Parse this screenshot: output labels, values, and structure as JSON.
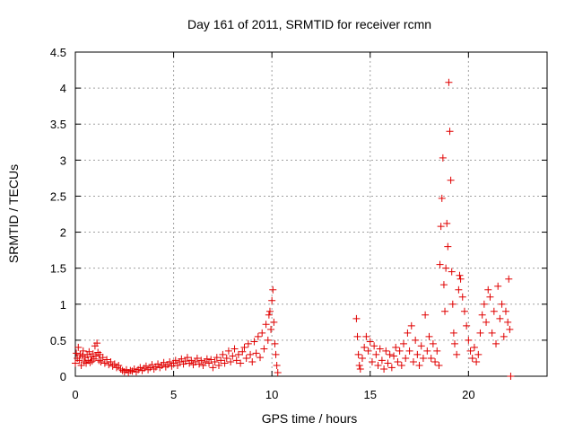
{
  "chart_data": {
    "type": "scatter",
    "title": "Day 161 of 2011, SRMTID for receiver rcmn",
    "xlabel": "GPS time / hours",
    "ylabel": "SRMTID / TECUs",
    "xlim": [
      0,
      24
    ],
    "ylim": [
      0,
      4.5
    ],
    "x_ticks": [
      0,
      5,
      10,
      15,
      20
    ],
    "x_tick_labels": [
      "0",
      "5",
      "10",
      "15",
      "20"
    ],
    "y_ticks": [
      0,
      0.5,
      1,
      1.5,
      2,
      2.5,
      3,
      3.5,
      4,
      4.5
    ],
    "y_tick_labels": [
      "0",
      "0.5",
      "1",
      "1.5",
      "2",
      "2.5",
      "3",
      "3.5",
      "4",
      "4.5"
    ],
    "grid": true,
    "marker": "+",
    "marker_color": "#e00000",
    "series": [
      {
        "name": "rcmn",
        "points": [
          [
            0.0,
            0.18
          ],
          [
            0.05,
            0.32
          ],
          [
            0.1,
            0.25
          ],
          [
            0.15,
            0.4
          ],
          [
            0.2,
            0.22
          ],
          [
            0.25,
            0.3
          ],
          [
            0.3,
            0.15
          ],
          [
            0.35,
            0.28
          ],
          [
            0.4,
            0.35
          ],
          [
            0.45,
            0.2
          ],
          [
            0.5,
            0.26
          ],
          [
            0.55,
            0.18
          ],
          [
            0.6,
            0.3
          ],
          [
            0.65,
            0.22
          ],
          [
            0.7,
            0.34
          ],
          [
            0.75,
            0.19
          ],
          [
            0.8,
            0.27
          ],
          [
            0.85,
            0.21
          ],
          [
            0.9,
            0.31
          ],
          [
            0.95,
            0.24
          ],
          [
            1.0,
            0.42
          ],
          [
            1.05,
            0.28
          ],
          [
            1.1,
            0.46
          ],
          [
            1.15,
            0.33
          ],
          [
            1.2,
            0.22
          ],
          [
            1.25,
            0.3
          ],
          [
            1.3,
            0.2
          ],
          [
            1.4,
            0.26
          ],
          [
            1.5,
            0.18
          ],
          [
            1.6,
            0.23
          ],
          [
            1.7,
            0.16
          ],
          [
            1.8,
            0.2
          ],
          [
            1.9,
            0.14
          ],
          [
            2.0,
            0.17
          ],
          [
            2.1,
            0.12
          ],
          [
            2.2,
            0.15
          ],
          [
            2.3,
            0.1
          ],
          [
            2.4,
            0.08
          ],
          [
            2.5,
            0.06
          ],
          [
            2.6,
            0.09
          ],
          [
            2.7,
            0.05
          ],
          [
            2.8,
            0.08
          ],
          [
            2.9,
            0.07
          ],
          [
            3.0,
            0.1
          ],
          [
            3.1,
            0.06
          ],
          [
            3.2,
            0.09
          ],
          [
            3.3,
            0.12
          ],
          [
            3.4,
            0.08
          ],
          [
            3.5,
            0.11
          ],
          [
            3.6,
            0.14
          ],
          [
            3.7,
            0.09
          ],
          [
            3.8,
            0.12
          ],
          [
            3.9,
            0.16
          ],
          [
            4.0,
            0.1
          ],
          [
            4.1,
            0.13
          ],
          [
            4.2,
            0.17
          ],
          [
            4.3,
            0.12
          ],
          [
            4.4,
            0.15
          ],
          [
            4.5,
            0.19
          ],
          [
            4.6,
            0.13
          ],
          [
            4.7,
            0.16
          ],
          [
            4.8,
            0.2
          ],
          [
            4.9,
            0.14
          ],
          [
            5.0,
            0.18
          ],
          [
            5.1,
            0.22
          ],
          [
            5.2,
            0.15
          ],
          [
            5.3,
            0.2
          ],
          [
            5.4,
            0.24
          ],
          [
            5.5,
            0.17
          ],
          [
            5.6,
            0.21
          ],
          [
            5.7,
            0.26
          ],
          [
            5.8,
            0.18
          ],
          [
            5.9,
            0.22
          ],
          [
            6.0,
            0.16
          ],
          [
            6.1,
            0.2
          ],
          [
            6.2,
            0.25
          ],
          [
            6.3,
            0.17
          ],
          [
            6.4,
            0.22
          ],
          [
            6.5,
            0.15
          ],
          [
            6.6,
            0.2
          ],
          [
            6.7,
            0.24
          ],
          [
            6.8,
            0.18
          ],
          [
            6.9,
            0.23
          ],
          [
            7.0,
            0.12
          ],
          [
            7.1,
            0.2
          ],
          [
            7.2,
            0.26
          ],
          [
            7.3,
            0.15
          ],
          [
            7.4,
            0.22
          ],
          [
            7.5,
            0.3
          ],
          [
            7.6,
            0.18
          ],
          [
            7.7,
            0.25
          ],
          [
            7.8,
            0.35
          ],
          [
            7.9,
            0.2
          ],
          [
            8.0,
            0.28
          ],
          [
            8.1,
            0.38
          ],
          [
            8.2,
            0.22
          ],
          [
            8.3,
            0.3
          ],
          [
            8.4,
            0.18
          ],
          [
            8.5,
            0.34
          ],
          [
            8.6,
            0.4
          ],
          [
            8.7,
            0.25
          ],
          [
            8.8,
            0.45
          ],
          [
            8.9,
            0.3
          ],
          [
            9.0,
            0.2
          ],
          [
            9.1,
            0.48
          ],
          [
            9.2,
            0.32
          ],
          [
            9.3,
            0.55
          ],
          [
            9.4,
            0.26
          ],
          [
            9.5,
            0.6
          ],
          [
            9.6,
            0.38
          ],
          [
            9.7,
            0.72
          ],
          [
            9.8,
            0.5
          ],
          [
            9.85,
            0.85
          ],
          [
            9.9,
            0.9
          ],
          [
            9.95,
            0.65
          ],
          [
            10.0,
            1.05
          ],
          [
            10.05,
            1.2
          ],
          [
            10.1,
            0.75
          ],
          [
            10.15,
            0.45
          ],
          [
            10.2,
            0.3
          ],
          [
            10.25,
            0.15
          ],
          [
            10.3,
            0.05
          ],
          [
            14.3,
            0.8
          ],
          [
            14.35,
            0.55
          ],
          [
            14.4,
            0.3
          ],
          [
            14.45,
            0.15
          ],
          [
            14.5,
            0.1
          ],
          [
            14.6,
            0.25
          ],
          [
            14.7,
            0.4
          ],
          [
            14.8,
            0.55
          ],
          [
            14.9,
            0.35
          ],
          [
            15.0,
            0.48
          ],
          [
            15.1,
            0.2
          ],
          [
            15.2,
            0.42
          ],
          [
            15.3,
            0.3
          ],
          [
            15.4,
            0.15
          ],
          [
            15.5,
            0.38
          ],
          [
            15.6,
            0.22
          ],
          [
            15.7,
            0.1
          ],
          [
            15.8,
            0.35
          ],
          [
            15.9,
            0.18
          ],
          [
            16.0,
            0.3
          ],
          [
            16.1,
            0.12
          ],
          [
            16.2,
            0.28
          ],
          [
            16.3,
            0.4
          ],
          [
            16.4,
            0.2
          ],
          [
            16.5,
            0.35
          ],
          [
            16.6,
            0.15
          ],
          [
            16.7,
            0.45
          ],
          [
            16.8,
            0.25
          ],
          [
            16.9,
            0.6
          ],
          [
            17.0,
            0.35
          ],
          [
            17.1,
            0.7
          ],
          [
            17.2,
            0.2
          ],
          [
            17.3,
            0.5
          ],
          [
            17.4,
            0.3
          ],
          [
            17.5,
            0.15
          ],
          [
            17.6,
            0.42
          ],
          [
            17.7,
            0.25
          ],
          [
            17.8,
            0.85
          ],
          [
            17.9,
            0.35
          ],
          [
            18.0,
            0.55
          ],
          [
            18.1,
            0.25
          ],
          [
            18.2,
            0.45
          ],
          [
            18.3,
            0.2
          ],
          [
            18.4,
            0.35
          ],
          [
            18.5,
            0.15
          ],
          [
            18.55,
            1.55
          ],
          [
            18.6,
            2.08
          ],
          [
            18.65,
            2.47
          ],
          [
            18.7,
            3.03
          ],
          [
            18.75,
            1.27
          ],
          [
            18.8,
            0.9
          ],
          [
            18.85,
            1.5
          ],
          [
            18.9,
            2.12
          ],
          [
            18.95,
            1.8
          ],
          [
            19.0,
            4.08
          ],
          [
            19.05,
            3.4
          ],
          [
            19.1,
            2.72
          ],
          [
            19.15,
            1.45
          ],
          [
            19.2,
            1.0
          ],
          [
            19.25,
            0.6
          ],
          [
            19.3,
            0.45
          ],
          [
            19.4,
            0.3
          ],
          [
            19.5,
            1.2
          ],
          [
            19.55,
            1.4
          ],
          [
            19.6,
            1.35
          ],
          [
            19.7,
            1.1
          ],
          [
            19.8,
            0.9
          ],
          [
            19.9,
            0.7
          ],
          [
            20.0,
            0.5
          ],
          [
            20.1,
            0.35
          ],
          [
            20.2,
            0.25
          ],
          [
            20.3,
            0.4
          ],
          [
            20.4,
            0.2
          ],
          [
            20.5,
            0.3
          ],
          [
            20.6,
            0.6
          ],
          [
            20.7,
            0.85
          ],
          [
            20.8,
            1.0
          ],
          [
            20.9,
            0.75
          ],
          [
            21.0,
            1.2
          ],
          [
            21.1,
            1.1
          ],
          [
            21.2,
            0.6
          ],
          [
            21.3,
            0.9
          ],
          [
            21.4,
            0.45
          ],
          [
            21.5,
            1.25
          ],
          [
            21.6,
            0.8
          ],
          [
            21.7,
            1.0
          ],
          [
            21.8,
            0.55
          ],
          [
            21.9,
            0.9
          ],
          [
            22.0,
            0.75
          ],
          [
            22.05,
            1.35
          ],
          [
            22.1,
            0.65
          ],
          [
            22.15,
            0.0
          ]
        ]
      }
    ]
  }
}
